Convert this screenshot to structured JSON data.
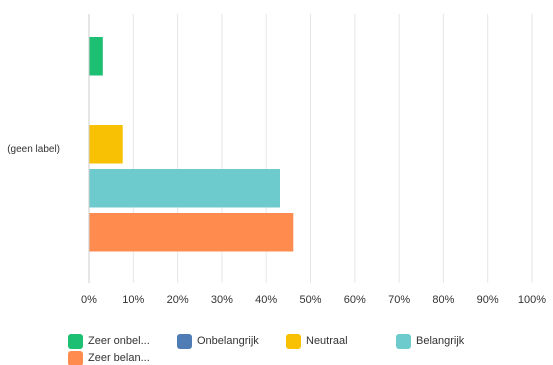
{
  "chart_data": {
    "type": "bar",
    "orientation": "horizontal",
    "categories": [
      "(geen label)"
    ],
    "series": [
      {
        "name": "Zeer onbel...",
        "values": [
          3
        ],
        "color": "#1dbf73"
      },
      {
        "name": "Onbelangrijk",
        "values": [
          0
        ],
        "color": "#507cb6"
      },
      {
        "name": "Neutraal",
        "values": [
          7.5
        ],
        "color": "#f8c104"
      },
      {
        "name": "Belangrijk",
        "values": [
          43
        ],
        "color": "#6dcbcd"
      },
      {
        "name": "Zeer belan...",
        "values": [
          46
        ],
        "color": "#ff8b4f"
      }
    ],
    "xlim": [
      0,
      100
    ],
    "xticks": [
      "0%",
      "10%",
      "20%",
      "30%",
      "40%",
      "50%",
      "60%",
      "70%",
      "80%",
      "90%",
      "100%"
    ],
    "grid": true,
    "legend_position": "bottom"
  }
}
